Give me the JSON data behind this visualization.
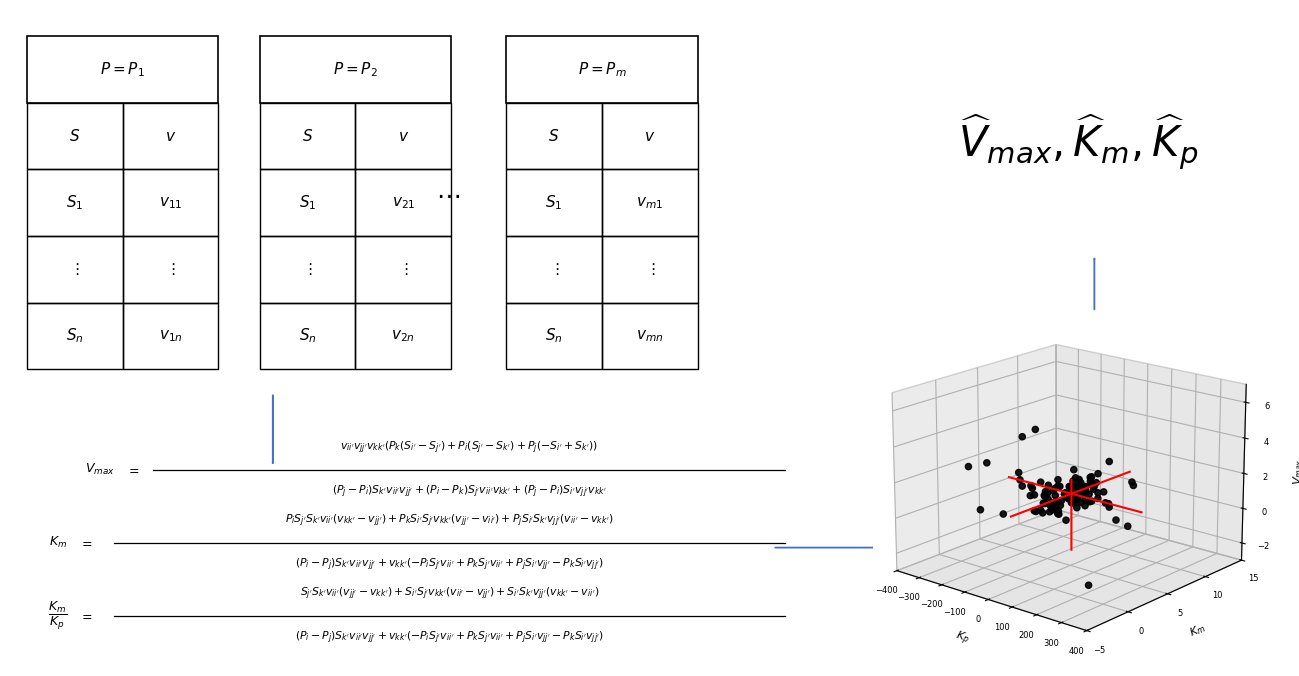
{
  "bg_color": "#ffffff",
  "arrow_color": "#4472C4",
  "scatter_n": 120,
  "scatter_seed": 42,
  "vmax_label": "$V_{max}$",
  "km_label": "$K_m$",
  "kp_label": "$K_p$",
  "result_text": "$\\widehat{V}_{max}, \\widehat{K}_m, \\widehat{K}_p$"
}
